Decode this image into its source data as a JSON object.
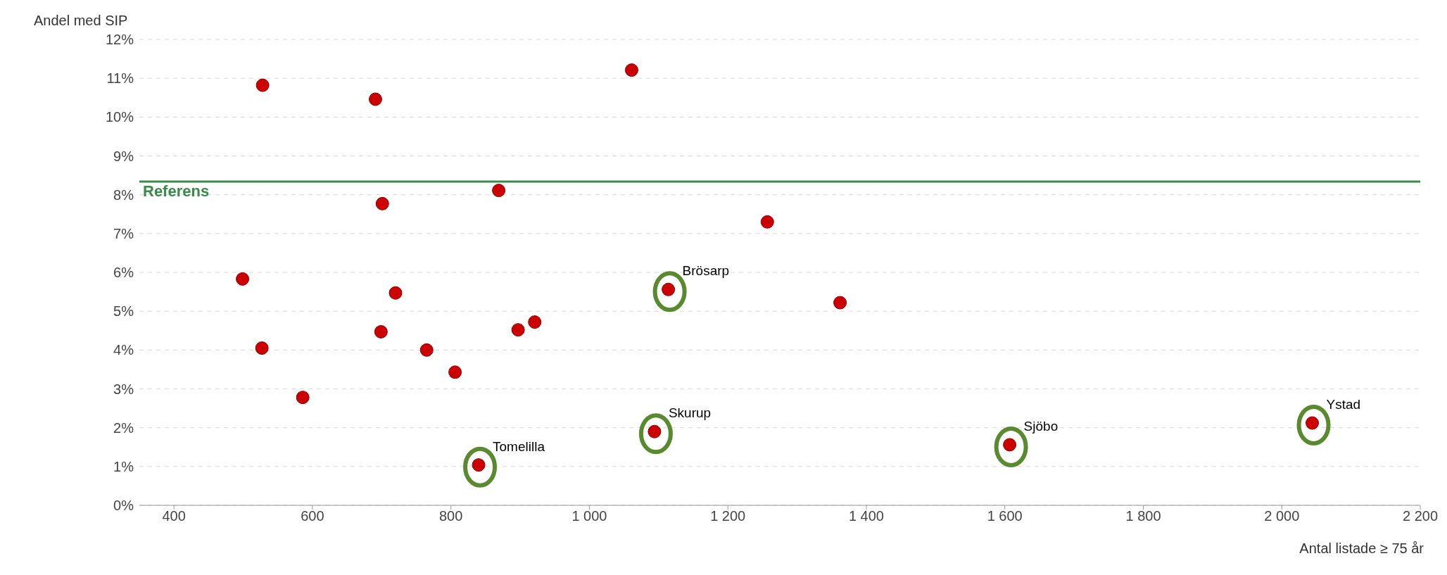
{
  "chart_data": {
    "type": "scatter",
    "xlabel": "Antal listade ≥ 75 år",
    "ylabel": "Andel med SIP",
    "x": [
      528,
      691,
      1061,
      869,
      701,
      1257,
      499,
      720,
      1114,
      1362,
      699,
      897,
      921,
      527,
      765,
      806,
      586,
      840,
      1094,
      1607,
      2044
    ],
    "series": [
      {
        "color": "#cc0000",
        "values": [
          10.82,
          10.46,
          11.21,
          8.11,
          7.77,
          7.3,
          5.83,
          5.47,
          5.56,
          5.22,
          4.47,
          4.52,
          4.72,
          4.05,
          4.0,
          3.43,
          2.78,
          1.04,
          1.9,
          1.56,
          2.12
        ]
      }
    ],
    "marker": "circle",
    "grid": "y",
    "xlim": [
      350,
      2200
    ],
    "xticks": [
      {
        "value": 400,
        "label": "400"
      },
      {
        "value": 600,
        "label": "600"
      },
      {
        "value": 800,
        "label": "800"
      },
      {
        "value": 1000,
        "label": "1 000"
      },
      {
        "value": 1200,
        "label": "1 200"
      },
      {
        "value": 1400,
        "label": "1 400"
      },
      {
        "value": 1600,
        "label": "1 600"
      },
      {
        "value": 1800,
        "label": "1 800"
      },
      {
        "value": 2000,
        "label": "2 000"
      },
      {
        "value": 2200,
        "label": "2 200"
      }
    ],
    "ylim": [
      0,
      12
    ],
    "yticks": [
      {
        "value": 0,
        "label": "0%"
      },
      {
        "value": 1,
        "label": "1%"
      },
      {
        "value": 2,
        "label": "2%"
      },
      {
        "value": 3,
        "label": "3%"
      },
      {
        "value": 4,
        "label": "4%"
      },
      {
        "value": 5,
        "label": "5%"
      },
      {
        "value": 6,
        "label": "6%"
      },
      {
        "value": 7,
        "label": "7%"
      },
      {
        "value": 8,
        "label": "8%"
      },
      {
        "value": 9,
        "label": "9%"
      },
      {
        "value": 10,
        "label": "10%"
      },
      {
        "value": 11,
        "label": "11%"
      },
      {
        "value": 12,
        "label": "12%"
      }
    ],
    "ref_lines": [
      {
        "axis": "y",
        "value": 8.34,
        "label": "Referens",
        "color": "#3a8a4a"
      }
    ],
    "annotations": [
      {
        "text": "Brösarp",
        "x": 1114,
        "y": 5.56
      },
      {
        "text": "Skurup",
        "x": 1094,
        "y": 1.9
      },
      {
        "text": "Tomelilla",
        "x": 840,
        "y": 1.04
      },
      {
        "text": "Sjöbo",
        "x": 1607,
        "y": 1.56
      },
      {
        "text": "Ystad",
        "x": 2044,
        "y": 2.12
      }
    ]
  }
}
